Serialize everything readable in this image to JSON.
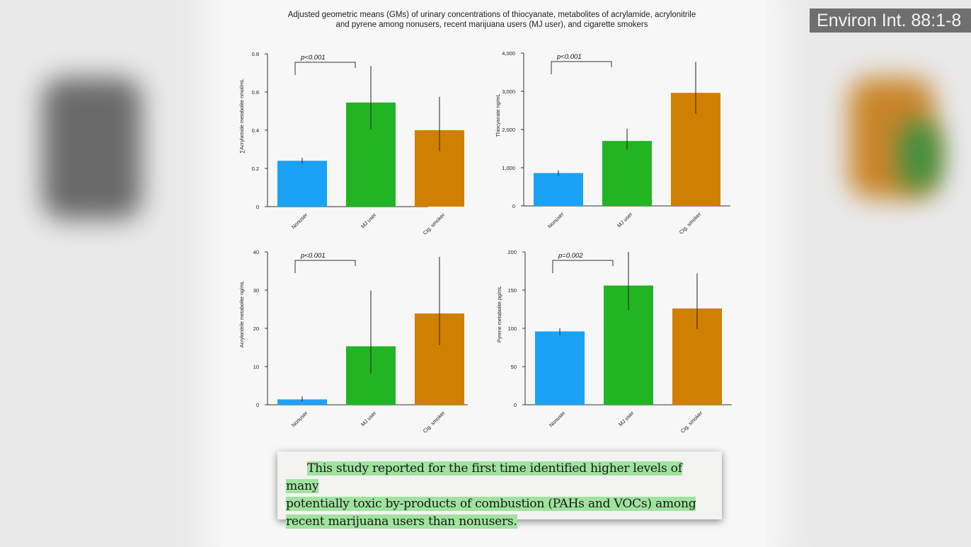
{
  "figure_title": "Adjusted geometric means (GMs) of urinary concentrations of thiocyanate, metabolites of acrylamide, acrylonitrile and pyrene among nonusers, recent marijuana users (MJ user), and cigarette smokers",
  "citation_badge": "Environ Int. 88:1-8",
  "caption": {
    "lines": [
      "This study reported for the first time identified higher levels of many",
      "potentially toxic by-products of combustion (PAHs and VOCs) among",
      "recent marijuana users than nonusers."
    ],
    "highlight_color": "#9fe39f"
  },
  "colors": {
    "Nonuser": "#1aa3f5",
    "MJ user": "#22b422",
    "Cig. smoker": "#d08000"
  },
  "chart_data": [
    {
      "type": "bar",
      "title": "",
      "categories": [
        "Nonuser",
        "MJ user",
        "Cig. smoker"
      ],
      "values": [
        0.24,
        0.545,
        0.4
      ],
      "error_low": [
        0.225,
        0.405,
        0.29
      ],
      "error_high": [
        0.255,
        0.735,
        0.575
      ],
      "ylabel": "∑Acrylamide metabolite nmol/mL",
      "ylim": [
        0,
        0.8
      ],
      "yticks": [
        "0",
        "0.2",
        "0.4",
        "0.6",
        "0.8"
      ],
      "ytick_values": [
        0,
        0.2,
        0.4,
        0.6,
        0.8
      ],
      "annotation": "p<0.001",
      "bracket": [
        0,
        1
      ]
    },
    {
      "type": "bar",
      "title": "",
      "categories": [
        "Nonuser",
        "MJ user",
        "Cig. smoker"
      ],
      "values": [
        860,
        1700,
        2960
      ],
      "error_low": [
        790,
        1470,
        2410
      ],
      "error_high": [
        930,
        2020,
        3770
      ],
      "ylabel": "Thiocyanate ng/mL",
      "ylim": [
        0,
        4000
      ],
      "yticks": [
        "0",
        "1,000",
        "2,000",
        "3,000",
        "4,000"
      ],
      "ytick_values": [
        0,
        1000,
        2000,
        3000,
        4000
      ],
      "annotation": "p<0.001",
      "bracket": [
        0,
        1
      ]
    },
    {
      "type": "bar",
      "title": "",
      "categories": [
        "Nonuser",
        "MJ user",
        "Cig. smoker"
      ],
      "values": [
        1.4,
        15.3,
        23.9
      ],
      "error_low": [
        0.8,
        8.1,
        15.6
      ],
      "error_high": [
        2.2,
        29.9,
        38.7
      ],
      "ylabel": "Acrylonitrile metabolite ng/mL",
      "ylim": [
        0,
        40
      ],
      "yticks": [
        "0",
        "10",
        "20",
        "30",
        "40"
      ],
      "ytick_values": [
        0,
        10,
        20,
        30,
        40
      ],
      "annotation": "p<0.001",
      "bracket": [
        0,
        1
      ]
    },
    {
      "type": "bar",
      "title": "",
      "categories": [
        "Nonuser",
        "MJ user",
        "Cig. smoker"
      ],
      "values": [
        96,
        156,
        126
      ],
      "error_low": [
        91,
        124,
        99
      ],
      "error_high": [
        100,
        200,
        172
      ],
      "ylabel": "Pyrene metabolite pg/mL",
      "ylim": [
        0,
        200
      ],
      "yticks": [
        "0",
        "50",
        "100",
        "150",
        "200"
      ],
      "ytick_values": [
        0,
        50,
        100,
        150,
        200
      ],
      "annotation": "p=0.002",
      "bracket": [
        0,
        1
      ]
    }
  ]
}
